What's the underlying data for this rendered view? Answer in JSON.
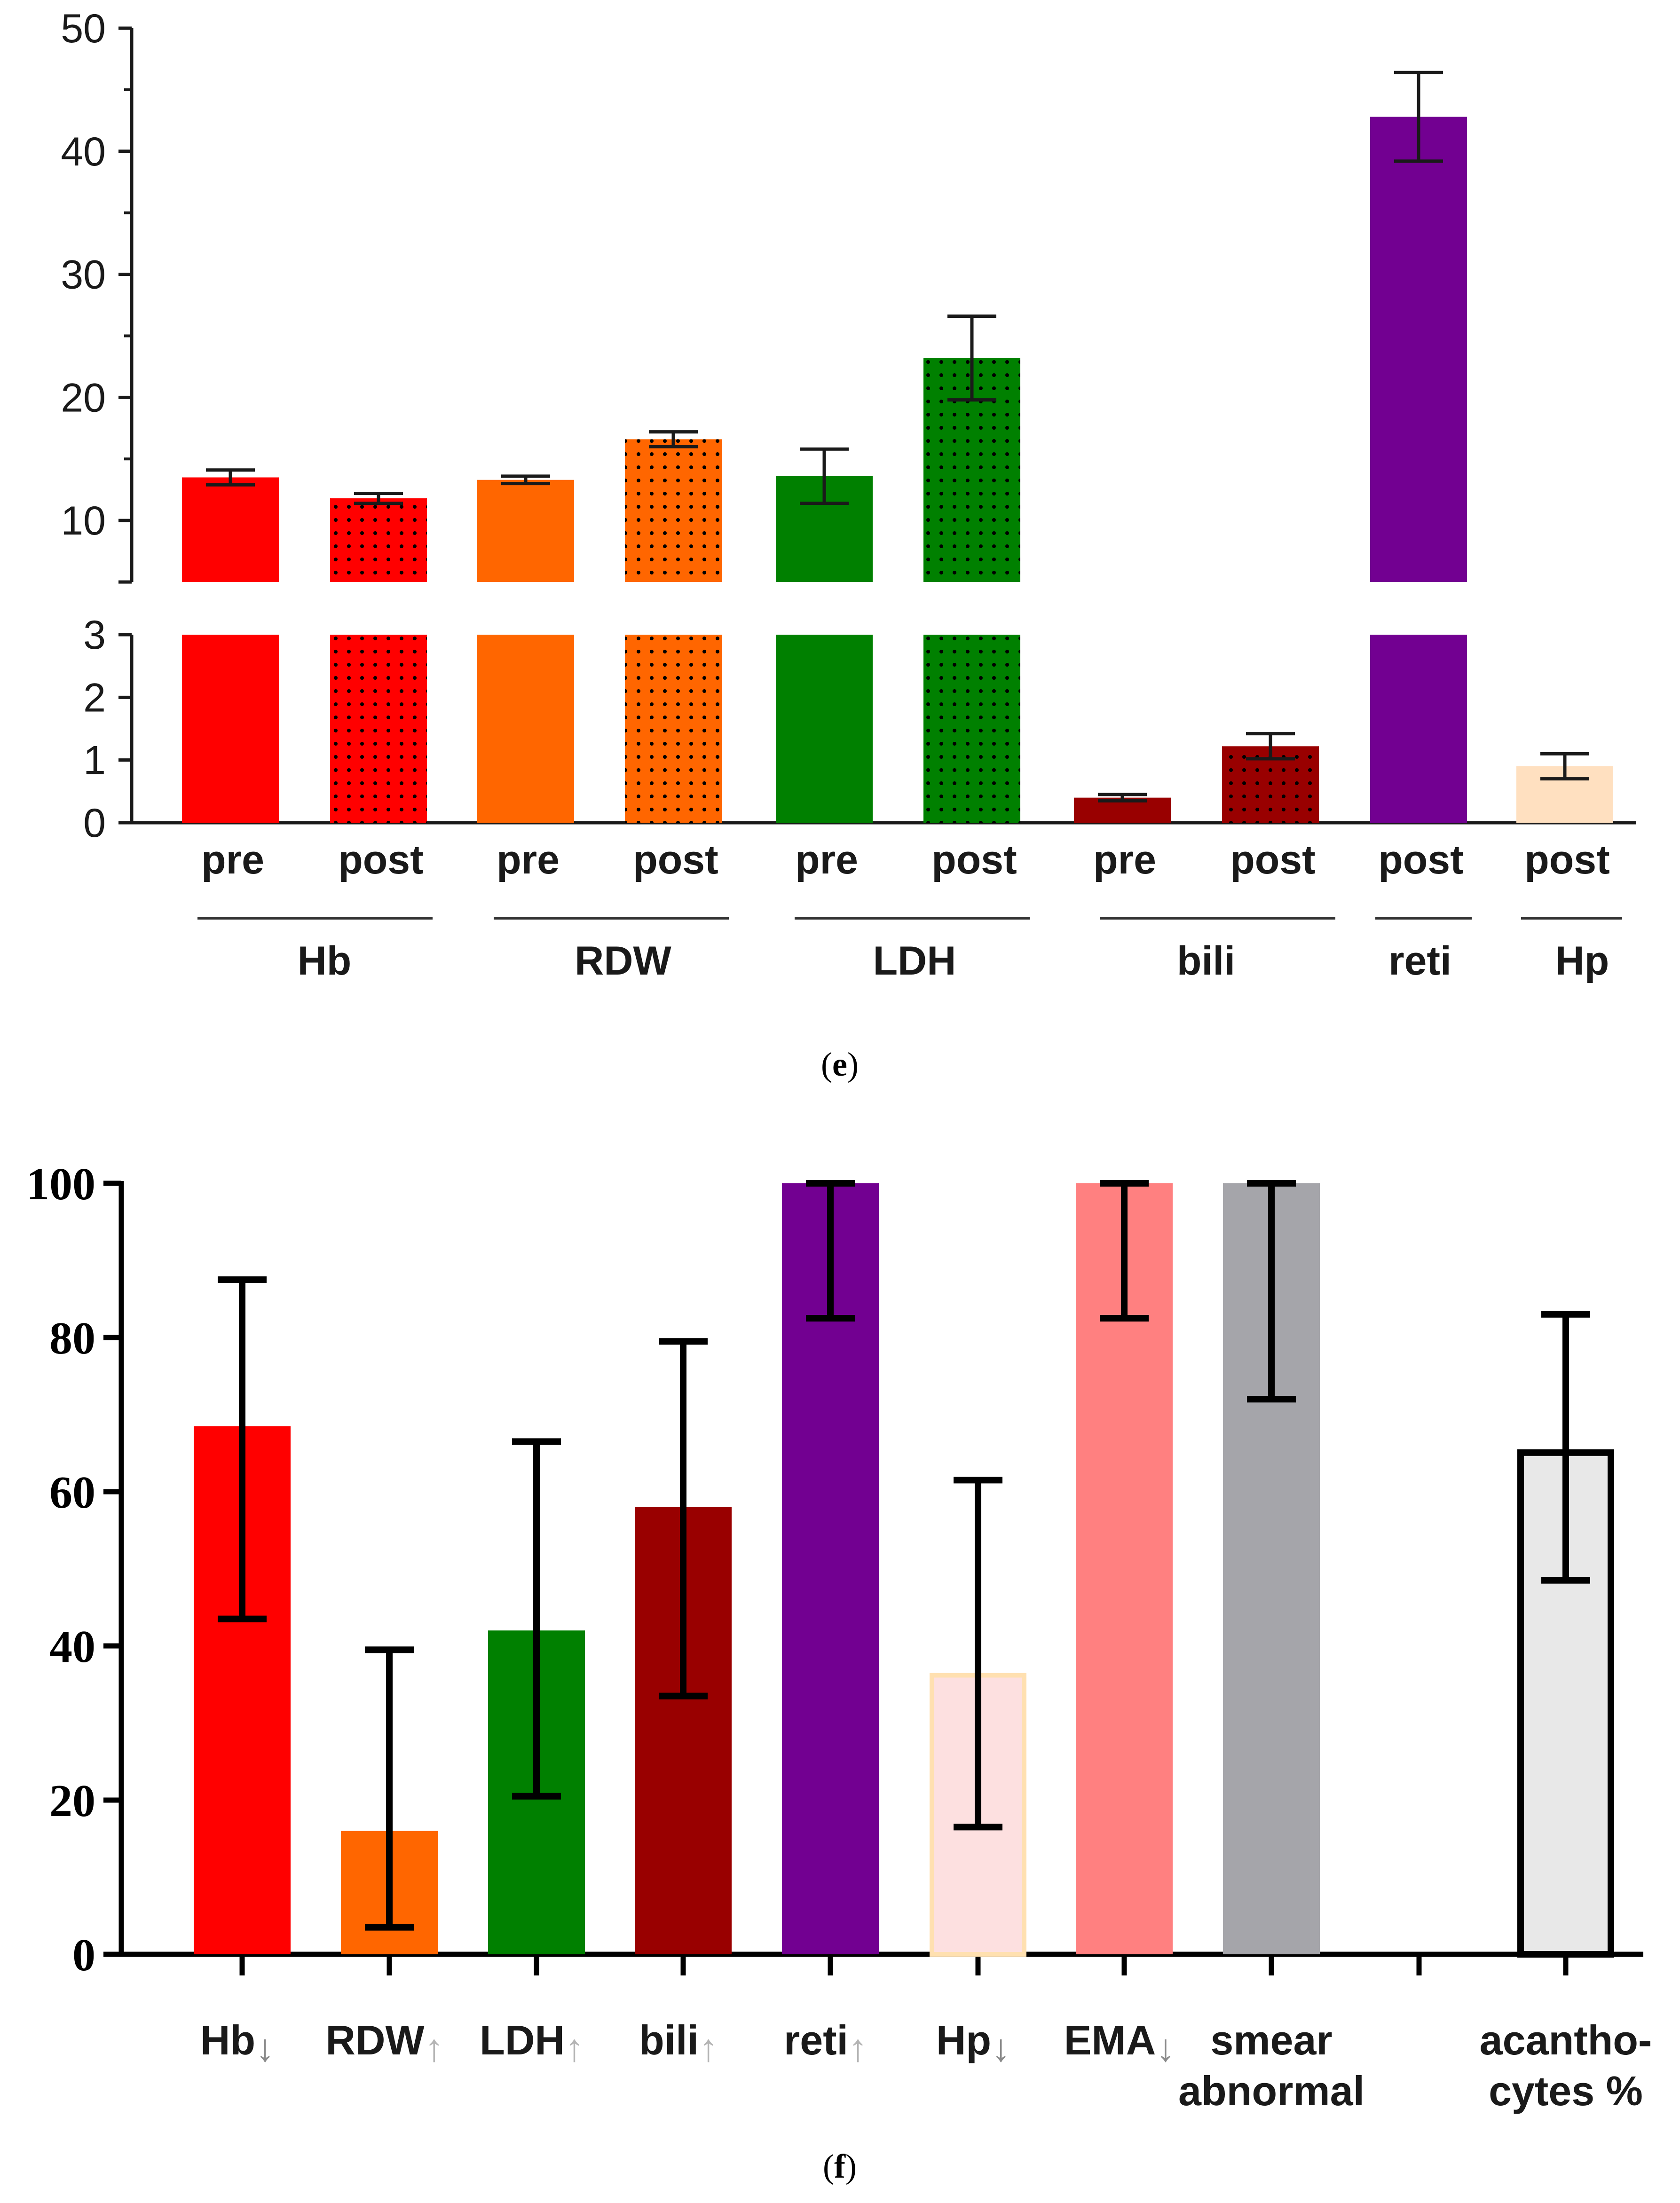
{
  "chart_data": [
    {
      "type": "bar",
      "panel_label_open": "(",
      "panel_label_letter": "e",
      "panel_label_close": ")",
      "axis_break": true,
      "y_ticks_upper": [
        "10",
        "20",
        "30",
        "40",
        "50"
      ],
      "y_ticks_lower": [
        "0",
        "1",
        "2",
        "3"
      ],
      "ylim_upper": [
        5,
        50
      ],
      "ylim_lower": [
        0,
        3
      ],
      "bars": [
        {
          "label": "pre",
          "group": "Hb",
          "value": 13.5,
          "err": 0.6,
          "color": "#ff0000",
          "dotted": false
        },
        {
          "label": "post",
          "group": "Hb",
          "value": 11.8,
          "err": 0.4,
          "color": "#ff0000",
          "dotted": true
        },
        {
          "label": "pre",
          "group": "RDW",
          "value": 13.3,
          "err": 0.3,
          "color": "#ff6600",
          "dotted": false
        },
        {
          "label": "post",
          "group": "RDW",
          "value": 16.6,
          "err": 0.6,
          "color": "#ff6600",
          "dotted": true
        },
        {
          "label": "pre",
          "group": "LDH",
          "value": 13.6,
          "err": 2.2,
          "color": "#008000",
          "dotted": false
        },
        {
          "label": "post",
          "group": "LDH",
          "value": 23.2,
          "err": 3.4,
          "color": "#008000",
          "dotted": true
        },
        {
          "label": "pre",
          "group": "bili",
          "value": 0.4,
          "err": 0.05,
          "color": "#990000",
          "dotted": false
        },
        {
          "label": "post",
          "group": "bili",
          "value": 1.22,
          "err": 0.2,
          "color": "#990000",
          "dotted": true
        },
        {
          "label": "post",
          "group": "reti",
          "value": 42.8,
          "err": 3.6,
          "color": "#720091",
          "dotted": false
        },
        {
          "label": "post",
          "group": "Hp",
          "value": 0.9,
          "err": 0.2,
          "color": "#ffe0c0",
          "dotted": false
        }
      ],
      "groups": [
        "Hb",
        "RDW",
        "LDH",
        "bili",
        "reti",
        "Hp"
      ]
    },
    {
      "type": "bar",
      "panel_label_open": "(",
      "panel_label_letter": "f",
      "panel_label_close": ")",
      "ylim": [
        0,
        100
      ],
      "y_ticks": [
        "0",
        "20",
        "40",
        "60",
        "80",
        "100"
      ],
      "bars": [
        {
          "label": "Hb",
          "arrow": "↓",
          "value": 68.5,
          "err_low": 43.5,
          "err_high": 87.5,
          "color": "#ff0000",
          "outline": ""
        },
        {
          "label": "RDW",
          "arrow": "↑",
          "value": 16,
          "err_low": 3.5,
          "err_high": 39.5,
          "color": "#ff6600",
          "outline": ""
        },
        {
          "label": "LDH",
          "arrow": "↑",
          "value": 42,
          "err_low": 20.5,
          "err_high": 66.5,
          "color": "#008000",
          "outline": ""
        },
        {
          "label": "bili",
          "arrow": "↑",
          "value": 58,
          "err_low": 33.5,
          "err_high": 79.5,
          "color": "#990000",
          "outline": ""
        },
        {
          "label": "reti",
          "arrow": "↑",
          "value": 100,
          "err_low": 82.5,
          "err_high": 100,
          "color": "#720091",
          "outline": ""
        },
        {
          "label": "Hp",
          "arrow": "↓",
          "value": 36.5,
          "err_low": 16.5,
          "err_high": 61.5,
          "color": "#fde0e0",
          "outline": "#ffe0b0"
        },
        {
          "label": "EMA",
          "arrow": "↓",
          "value": 100,
          "err_low": 82.5,
          "err_high": 100,
          "color": "#ff8080",
          "outline": ""
        },
        {
          "label": "smear",
          "label2": "abnormal",
          "arrow": "",
          "value": 100,
          "err_low": 72,
          "err_high": 100,
          "color": "#a5a5aa",
          "outline": ""
        },
        {
          "label": "",
          "arrow": "",
          "value": 0,
          "err_low": null,
          "err_high": null,
          "color": "none",
          "outline": ""
        },
        {
          "label": "acantho-",
          "label2": "cytes %",
          "arrow": "",
          "value": 65.5,
          "err_low": 48.5,
          "err_high": 83,
          "color": "#e8e8e8",
          "outline": "#000000"
        }
      ]
    }
  ]
}
